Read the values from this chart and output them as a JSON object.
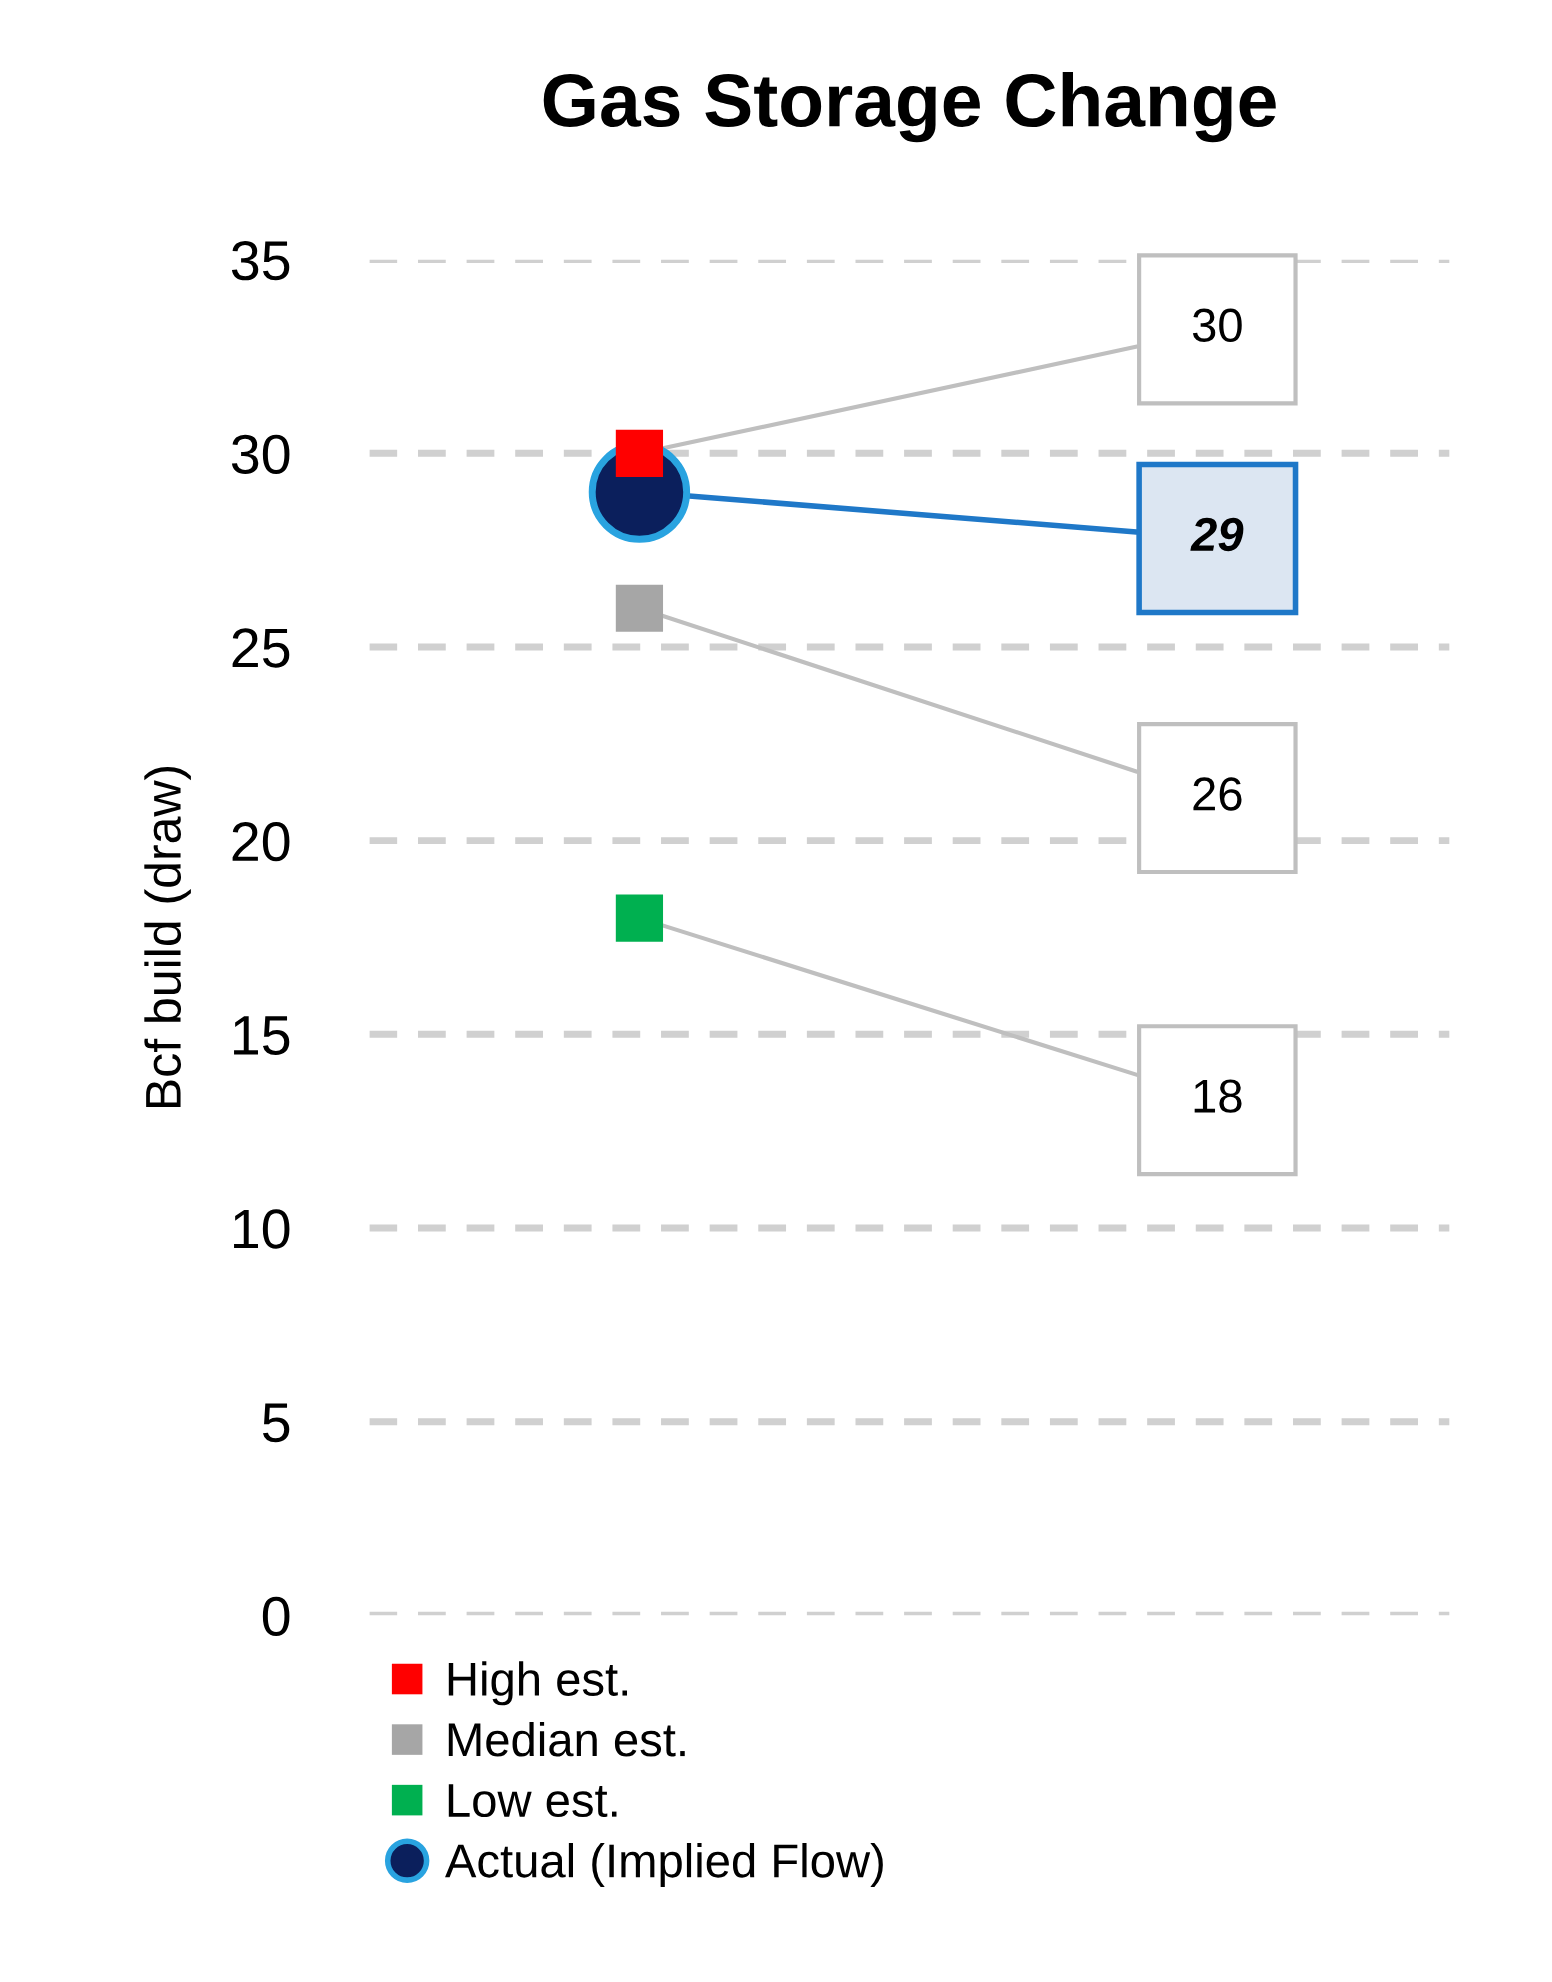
{
  "chart_data": {
    "type": "scatter",
    "title": "Gas Storage Change",
    "ylabel": "Bcf build (draw)",
    "categories": [
      null,
      null
    ],
    "series": [
      {
        "name": "High est.",
        "color": "#ff0000",
        "marker": "square",
        "values": [
          30,
          null
        ]
      },
      {
        "name": "Median est.",
        "color": "#a6a6a6",
        "marker": "square",
        "values": [
          26,
          null
        ]
      },
      {
        "name": "Low est.",
        "color": "#00b050",
        "marker": "square",
        "values": [
          18,
          null
        ]
      },
      {
        "name": "Actual (Implied Flow)",
        "color": "#0b1f5c",
        "marker": "circle",
        "values": [
          29,
          null
        ]
      }
    ],
    "annotations": [
      "30",
      "26",
      "18",
      "29"
    ],
    "ylim": [
      0,
      35
    ],
    "yticks": [
      0,
      5,
      10,
      15,
      20,
      25,
      30,
      35
    ],
    "grid": "y",
    "legend": "bottom"
  }
}
